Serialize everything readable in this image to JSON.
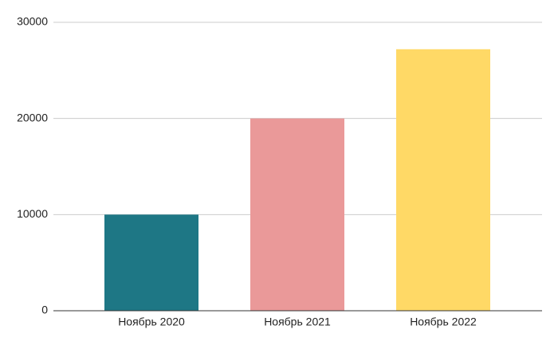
{
  "chart_data": {
    "type": "bar",
    "categories": [
      "Ноябрь 2020",
      "Ноябрь 2021",
      "Ноябрь 2022"
    ],
    "values": [
      10000,
      20000,
      27200
    ],
    "colors": [
      "#1e7785",
      "#ea9999",
      "#ffd966"
    ],
    "ylim": [
      0,
      30000
    ],
    "yticks": [
      0,
      10000,
      20000,
      30000
    ],
    "grid": true
  }
}
